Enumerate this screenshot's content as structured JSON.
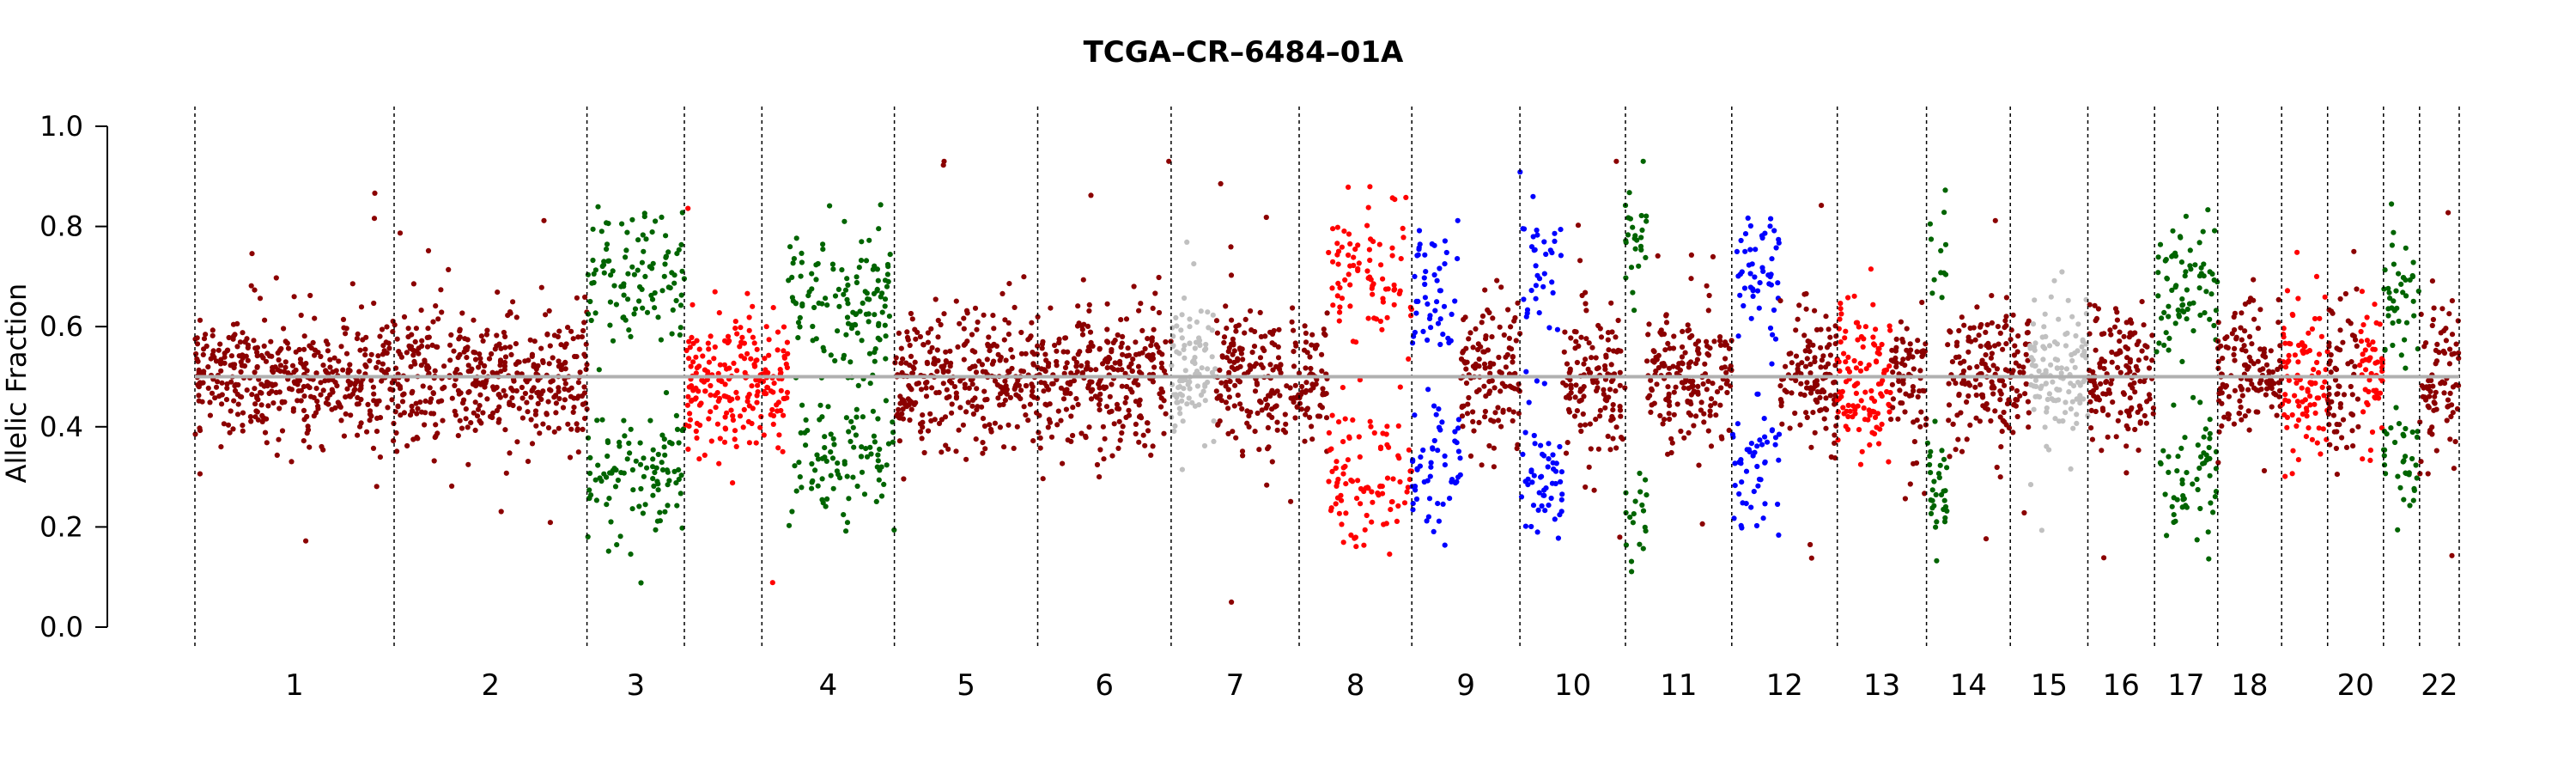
{
  "chart_data": {
    "type": "scatter",
    "title": "TCGA–CR–6484–01A",
    "ylabel": "Allelic Fraction",
    "xlabel": "",
    "ylim": [
      0,
      1
    ],
    "yticks": [
      "0.0",
      "0.2",
      "0.4",
      "0.6",
      "0.8",
      "1.0"
    ],
    "reference_line": 0.5,
    "grid": false,
    "colors": {
      "balanced": "#8b0000",
      "red": "#ff0000",
      "green": "#006400",
      "blue": "#0000ff",
      "grey": "#c0c0c0",
      "reference": "#b0b0b0"
    },
    "chromosomes": [
      {
        "label": "1",
        "start": 0,
        "end": 22.1,
        "segments": [
          {
            "from": 0,
            "to": 1,
            "color": "balanced",
            "mode": "het",
            "sep": 0.04
          }
        ]
      },
      {
        "label": "2",
        "start": 22.1,
        "end": 43.5,
        "segments": [
          {
            "from": 0,
            "to": 1,
            "color": "balanced",
            "mode": "het",
            "sep": 0.05
          }
        ]
      },
      {
        "label": "3",
        "start": 43.5,
        "end": 54.3,
        "segments": [
          {
            "from": 0,
            "to": 1,
            "color": "green",
            "mode": "split",
            "sep": 0.2
          }
        ]
      },
      {
        "label": "",
        "start": 54.3,
        "end": 62.9,
        "segments": [
          {
            "from": 0,
            "to": 1,
            "color": "red",
            "mode": "het",
            "sep": 0.06
          }
        ]
      },
      {
        "label": "4",
        "start": 62.9,
        "end": 77.6,
        "segments": [
          {
            "from": 0,
            "to": 0.2,
            "color": "red",
            "mode": "het",
            "sep": 0.05
          },
          {
            "from": 0.2,
            "to": 1,
            "color": "green",
            "mode": "split",
            "sep": 0.15
          }
        ]
      },
      {
        "label": "5",
        "start": 77.6,
        "end": 93.5,
        "segments": [
          {
            "from": 0,
            "to": 1,
            "color": "balanced",
            "mode": "het",
            "sep": 0.05
          }
        ]
      },
      {
        "label": "6",
        "start": 93.5,
        "end": 108.3,
        "segments": [
          {
            "from": 0,
            "to": 1,
            "color": "balanced",
            "mode": "het",
            "sep": 0.06
          }
        ]
      },
      {
        "label": "7",
        "start": 108.3,
        "end": 122.5,
        "segments": [
          {
            "from": 0,
            "to": 0.35,
            "color": "grey",
            "mode": "het",
            "sep": 0.03
          },
          {
            "from": 0.35,
            "to": 1,
            "color": "balanced",
            "mode": "het",
            "sep": 0.05
          }
        ]
      },
      {
        "label": "8",
        "start": 122.5,
        "end": 135.0,
        "segments": [
          {
            "from": 0,
            "to": 0.25,
            "color": "balanced",
            "mode": "het",
            "sep": 0.05
          },
          {
            "from": 0.25,
            "to": 1,
            "color": "red",
            "mode": "split",
            "sep": 0.2
          }
        ]
      },
      {
        "label": "9",
        "start": 135.0,
        "end": 147.0,
        "segments": [
          {
            "from": 0,
            "to": 0.45,
            "color": "blue",
            "mode": "split",
            "sep": 0.18
          },
          {
            "from": 0.45,
            "to": 1,
            "color": "balanced",
            "mode": "het",
            "sep": 0.05
          }
        ]
      },
      {
        "label": "10",
        "start": 147.0,
        "end": 158.7,
        "segments": [
          {
            "from": 0,
            "to": 0.4,
            "color": "blue",
            "mode": "split",
            "sep": 0.2
          },
          {
            "from": 0.4,
            "to": 1,
            "color": "balanced",
            "mode": "het",
            "sep": 0.06
          }
        ]
      },
      {
        "label": "11",
        "start": 158.7,
        "end": 170.5,
        "segments": [
          {
            "from": 0,
            "to": 0.2,
            "color": "green",
            "mode": "split",
            "sep": 0.3
          },
          {
            "from": 0.2,
            "to": 1,
            "color": "balanced",
            "mode": "het",
            "sep": 0.05
          }
        ]
      },
      {
        "label": "12",
        "start": 170.5,
        "end": 182.2,
        "segments": [
          {
            "from": 0,
            "to": 0.45,
            "color": "blue",
            "mode": "split",
            "sep": 0.2
          },
          {
            "from": 0.45,
            "to": 1,
            "color": "balanced",
            "mode": "het",
            "sep": 0.05
          }
        ]
      },
      {
        "label": "13",
        "start": 182.2,
        "end": 192.1,
        "segments": [
          {
            "from": 0,
            "to": 0.6,
            "color": "red",
            "mode": "het",
            "sep": 0.09
          },
          {
            "from": 0.6,
            "to": 1,
            "color": "balanced",
            "mode": "het",
            "sep": 0.05
          }
        ]
      },
      {
        "label": "14",
        "start": 192.1,
        "end": 201.4,
        "segments": [
          {
            "from": 0,
            "to": 0.25,
            "color": "green",
            "mode": "split",
            "sep": 0.25
          },
          {
            "from": 0.25,
            "to": 1,
            "color": "balanced",
            "mode": "het",
            "sep": 0.06
          }
        ]
      },
      {
        "label": "15",
        "start": 201.4,
        "end": 210.0,
        "segments": [
          {
            "from": 0,
            "to": 0.25,
            "color": "balanced",
            "mode": "het",
            "sep": 0.05
          },
          {
            "from": 0.25,
            "to": 1,
            "color": "grey",
            "mode": "het",
            "sep": 0.03
          }
        ]
      },
      {
        "label": "16",
        "start": 210.0,
        "end": 217.4,
        "segments": [
          {
            "from": 0,
            "to": 1,
            "color": "balanced",
            "mode": "het",
            "sep": 0.07
          }
        ]
      },
      {
        "label": "17",
        "start": 217.4,
        "end": 224.4,
        "segments": [
          {
            "from": 0,
            "to": 1,
            "color": "green",
            "mode": "split",
            "sep": 0.17
          }
        ]
      },
      {
        "label": "18",
        "start": 224.4,
        "end": 231.5,
        "segments": [
          {
            "from": 0,
            "to": 1,
            "color": "balanced",
            "mode": "het",
            "sep": 0.04
          }
        ]
      },
      {
        "label": "",
        "start": 231.5,
        "end": 236.6,
        "segments": [
          {
            "from": 0,
            "to": 1,
            "color": "red",
            "mode": "het",
            "sep": 0.1
          }
        ]
      },
      {
        "label": "20",
        "start": 236.6,
        "end": 242.8,
        "segments": [
          {
            "from": 0,
            "to": 0.55,
            "color": "balanced",
            "mode": "het",
            "sep": 0.08
          },
          {
            "from": 0.55,
            "to": 1,
            "color": "red",
            "mode": "het",
            "sep": 0.07
          }
        ]
      },
      {
        "label": "",
        "start": 242.8,
        "end": 246.8,
        "segments": [
          {
            "from": 0,
            "to": 1,
            "color": "green",
            "mode": "split",
            "sep": 0.17
          }
        ]
      },
      {
        "label": "22",
        "start": 246.8,
        "end": 251.2,
        "segments": [
          {
            "from": 0,
            "to": 1,
            "color": "balanced",
            "mode": "het",
            "sep": 0.08
          }
        ]
      }
    ]
  }
}
